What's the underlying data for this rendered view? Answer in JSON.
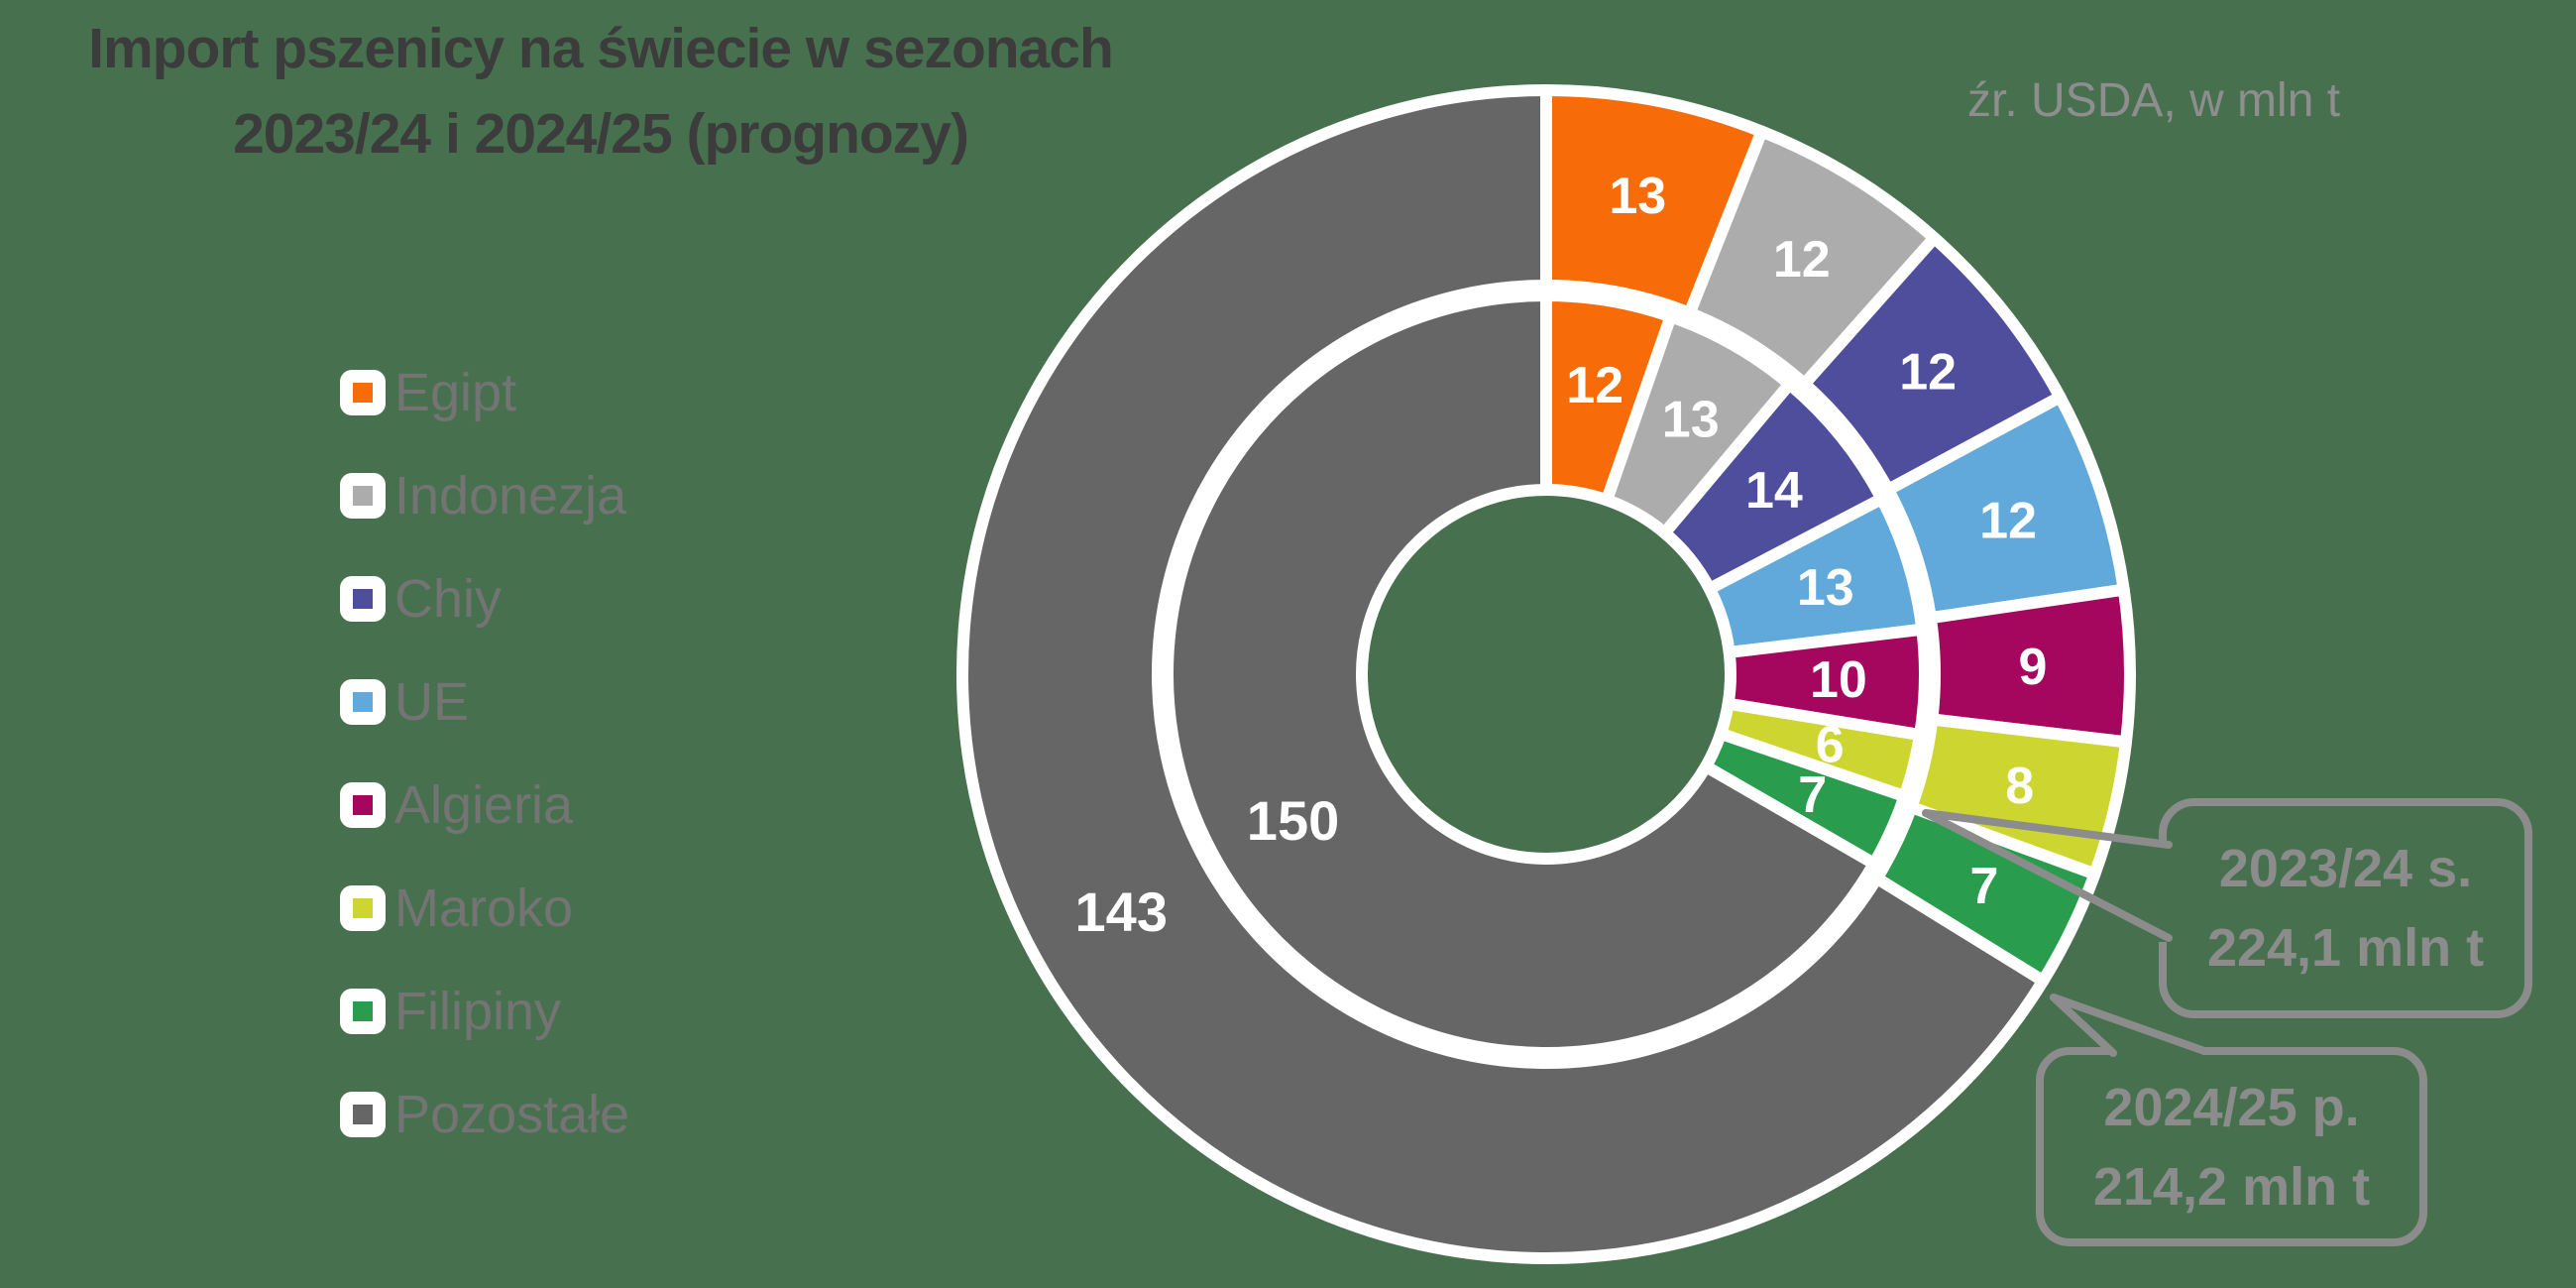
{
  "title": {
    "line1": "Import pszenicy na świecie w sezonach",
    "line2": "2023/24 i 2024/25 (prognozy)"
  },
  "source_note": "źr. USDA, w mln t",
  "colors": {
    "background": "#47714E",
    "title_text": "#3C3C3C",
    "legend_text": "#747474",
    "callout_gray": "#8C8C8C",
    "source_text": "#8E8E8E",
    "segment_label": "#FFFFFF",
    "separator_white": "#FFFFFF"
  },
  "legend": {
    "items": [
      {
        "label": "Egipt",
        "color": "#F76C09"
      },
      {
        "label": "Indonezja",
        "color": "#ACACAC"
      },
      {
        "label": "Chiy",
        "color": "#4E4E9C"
      },
      {
        "label": "UE",
        "color": "#61A9DA"
      },
      {
        "label": "Algieria",
        "color": "#A5075F"
      },
      {
        "label": "Maroko",
        "color": "#CDD631"
      },
      {
        "label": "Filipiny",
        "color": "#2A9C4E"
      },
      {
        "label": "Pozostałe",
        "color": "#666666"
      }
    ]
  },
  "chart_data": {
    "type": "donut",
    "title": "Import pszenicy na świecie w sezonach 2023/24 i 2024/25 (prognozy)",
    "unit": "mln t",
    "categories": [
      "Egipt",
      "Indonezja",
      "Chiy",
      "UE",
      "Algieria",
      "Maroko",
      "Filipiny",
      "Pozostałe"
    ],
    "colors": [
      "#F76C09",
      "#ACACAC",
      "#4E4E9C",
      "#61A9DA",
      "#A5075F",
      "#CDD631",
      "#2A9C4E",
      "#666666"
    ],
    "series": [
      {
        "name": "2023/24 s.",
        "ring": "inner",
        "total": "224,1",
        "total_label": "224,1 mln t",
        "values": [
          12,
          13,
          14,
          13,
          10,
          6,
          7,
          150
        ]
      },
      {
        "name": "2024/25 p.",
        "ring": "outer",
        "total": "214,2",
        "total_label": "214,2 mln t",
        "values": [
          13,
          12,
          12,
          12,
          9,
          8,
          7,
          143
        ]
      }
    ],
    "start_angle_deg": 0,
    "direction": "clockwise",
    "legend_position": "left"
  },
  "callouts": [
    {
      "line1": "2023/24 s.",
      "line2": "224,1 mln t"
    },
    {
      "line1": "2024/25 p.",
      "line2": "214,2 mln t"
    }
  ]
}
